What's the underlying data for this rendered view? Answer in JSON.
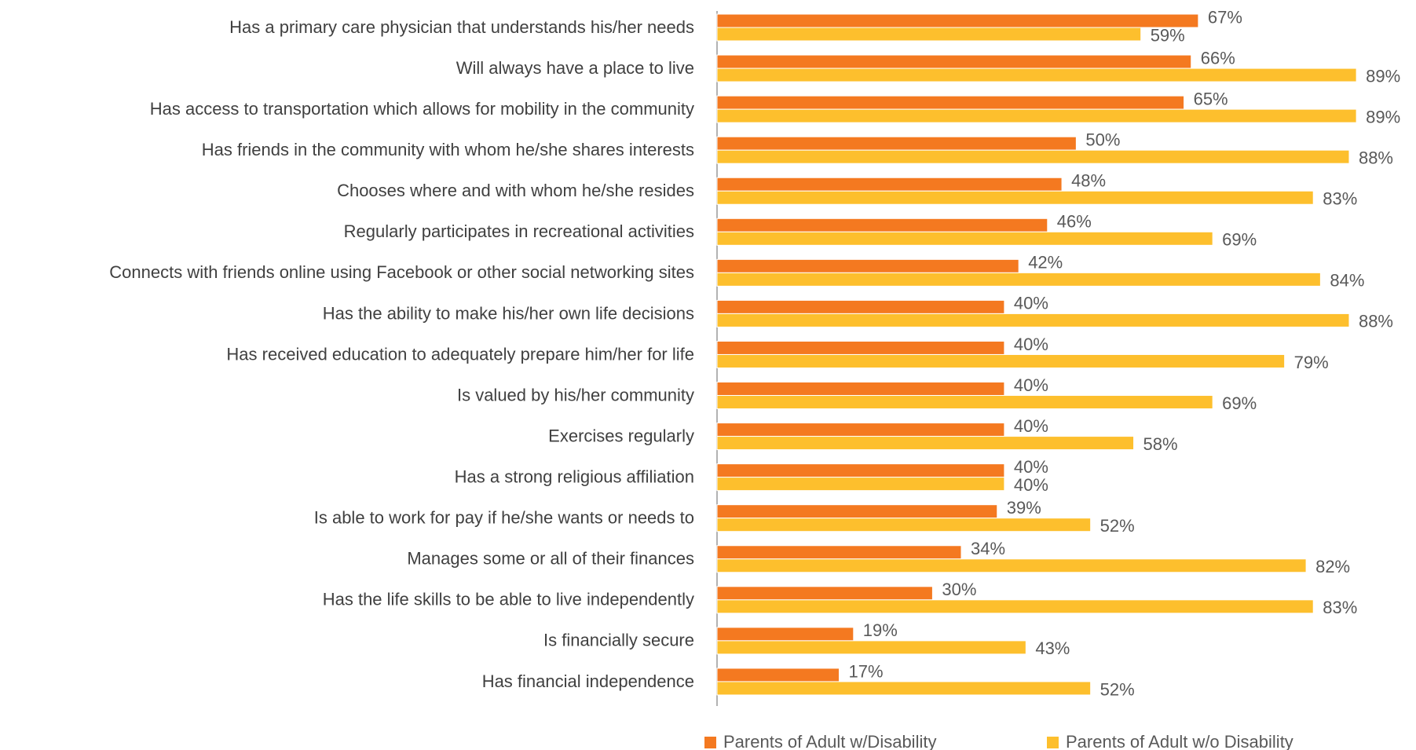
{
  "chart_data": {
    "type": "hbar",
    "categories": [
      "Has a primary care physician that understands his/her needs",
      "Will always have a place to live",
      "Has access to transportation which allows for mobility in the community",
      "Has friends in the community with whom he/she shares interests",
      "Chooses where and with whom he/she resides",
      "Regularly participates in recreational activities",
      "Connects with friends online using Facebook or other social networking sites",
      "Has the ability to make his/her own life decisions",
      "Has received education to adequately prepare him/her for life",
      "Is valued by his/her community",
      "Exercises regularly",
      "Has a strong religious affiliation",
      "Is able to work for pay if he/she wants or needs to",
      "Manages some or all of their finances",
      "Has the life skills to be able to live independently",
      "Is financially secure",
      "Has financial independence"
    ],
    "series": [
      {
        "name": "Parents of Adult w/Disability",
        "color": "#f47920",
        "values": [
          67,
          66,
          65,
          50,
          48,
          46,
          42,
          40,
          40,
          40,
          40,
          40,
          39,
          34,
          30,
          19,
          17
        ],
        "value_labels": [
          "67%",
          "66%",
          "65%",
          "50%",
          "48%",
          "46%",
          "42%",
          "40%",
          "40%",
          "40%",
          "40%",
          "40%",
          "39%",
          "34%",
          "30%",
          "19%",
          "17%"
        ]
      },
      {
        "name": "Parents of Adult w/o Disability",
        "color": "#fdbf2d",
        "values": [
          59,
          89,
          89,
          88,
          83,
          69,
          84,
          88,
          79,
          69,
          58,
          40,
          52,
          82,
          83,
          43,
          52
        ],
        "value_labels": [
          "59%",
          "89%",
          "89%",
          "88%",
          "83%",
          "69%",
          "84%",
          "88%",
          "79%",
          "69%",
          "58%",
          "40%",
          "52%",
          "82%",
          "83%",
          "43%",
          "52%"
        ]
      }
    ],
    "xlim": [
      0,
      95
    ],
    "legend": "bottom"
  }
}
